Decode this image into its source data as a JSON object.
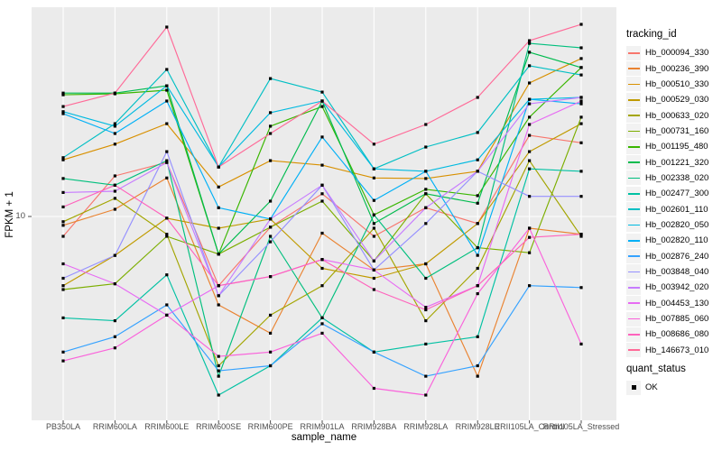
{
  "y_axis": {
    "title": "FPKM + 1",
    "tick_label": "10",
    "tick_value": 10
  },
  "x_axis": {
    "title": "sample_name"
  },
  "legend": {
    "tracking_title": "tracking_id",
    "quant_title": "quant_status",
    "quant_items": [
      {
        "label": "OK",
        "shape": "square",
        "color": "#000000"
      }
    ]
  },
  "chart_data": {
    "type": "line",
    "title": "",
    "xlabel": "sample_name",
    "ylabel": "FPKM + 1",
    "y_scale": "log10",
    "ylim": [
      1,
      120
    ],
    "y_ticks": [
      10
    ],
    "grid": "major-on-white",
    "legend_position": "right",
    "panel_bg": "#EBEBEB",
    "grid_color": "#FFFFFF",
    "marker": {
      "shape": "square",
      "color": "#000000",
      "size": 3.2,
      "legend": "OK"
    },
    "categories": [
      "PB350LA",
      "RRIM600LA",
      "RRIM600LE",
      "RRIM600SE",
      "RRIM600PE",
      "RRIM901LA",
      "RRIM928BA",
      "RRIM928LA",
      "RRIM928LE",
      "RRII105LA_Control",
      "RRII105LA_Stressed"
    ],
    "series": [
      {
        "name": "Hb_000094_330",
        "color": "#F8766D",
        "values": [
          7.9,
          16.2,
          19.0,
          4.4,
          8.8,
          13.1,
          7.9,
          11.1,
          9.2,
          26.2,
          24.0
        ]
      },
      {
        "name": "Hb_000236_390",
        "color": "#EA8331",
        "values": [
          9.0,
          10.9,
          15.8,
          3.5,
          2.5,
          8.2,
          5.3,
          5.7,
          1.5,
          8.7,
          8.1
        ]
      },
      {
        "name": "Hb_000510_330",
        "color": "#D89000",
        "values": [
          19.6,
          23.6,
          30.1,
          14.2,
          19.4,
          18.4,
          15.8,
          15.7,
          17.1,
          48.8,
          65.2
        ]
      },
      {
        "name": "Hb_000529_030",
        "color": "#C09B00",
        "values": [
          4.4,
          6.3,
          9.8,
          8.7,
          9.7,
          5.4,
          4.8,
          5.7,
          9.2,
          21.6,
          30.1
        ]
      },
      {
        "name": "Hb_000633_020",
        "color": "#A3A500",
        "values": [
          9.4,
          12.4,
          8.1,
          1.7,
          3.1,
          4.4,
          8.7,
          2.9,
          5.4,
          19.4,
          7.9
        ]
      },
      {
        "name": "Hb_000731_160",
        "color": "#7CAE00",
        "values": [
          4.2,
          4.5,
          7.9,
          6.4,
          8.8,
          12.0,
          5.9,
          13.1,
          6.9,
          6.5,
          32.5
        ]
      },
      {
        "name": "Hb_001195_480",
        "color": "#39B600",
        "values": [
          42.4,
          42.9,
          44.8,
          6.4,
          29.2,
          36.9,
          10.2,
          13.8,
          12.8,
          32.5,
          58.6
        ]
      },
      {
        "name": "Hb_001221_320",
        "color": "#00BB4E",
        "values": [
          43.3,
          43.3,
          47.2,
          6.4,
          12.0,
          39.4,
          9.2,
          13.1,
          11.7,
          70.3,
          58.6
        ]
      },
      {
        "name": "Hb_002338_020",
        "color": "#00BF7D",
        "values": [
          15.7,
          14.5,
          19.4,
          1.5,
          7.9,
          3.0,
          10.2,
          4.8,
          6.9,
          78.1,
          74.1
        ]
      },
      {
        "name": "Hb_002477_300",
        "color": "#00C1A3",
        "values": [
          3.0,
          2.9,
          5.0,
          1.2,
          1.7,
          3.0,
          2.0,
          2.2,
          2.4,
          17.6,
          17.1
        ]
      },
      {
        "name": "Hb_002601_110",
        "color": "#00BFC4",
        "values": [
          20.1,
          30.1,
          57.3,
          18.0,
          51.4,
          43.8,
          17.6,
          22.8,
          27.1,
          59.9,
          53.7
        ]
      },
      {
        "name": "Hb_002820_050",
        "color": "#00BAE0",
        "values": [
          34.7,
          29.2,
          47.2,
          18.0,
          34.3,
          39.4,
          17.6,
          17.1,
          19.6,
          40.2,
          41.1
        ]
      },
      {
        "name": "Hb_002820_110",
        "color": "#00B0F6",
        "values": [
          33.9,
          26.8,
          39.4,
          11.1,
          9.7,
          25.7,
          12.1,
          17.1,
          6.3,
          40.2,
          38.1
        ]
      },
      {
        "name": "Hb_002876_240",
        "color": "#35A2FF",
        "values": [
          2.0,
          2.4,
          3.5,
          1.6,
          1.7,
          2.8,
          2.0,
          1.5,
          1.7,
          4.4,
          4.3
        ]
      },
      {
        "name": "Hb_003848_040",
        "color": "#9590FF",
        "values": [
          4.8,
          6.3,
          21.6,
          3.9,
          7.4,
          14.5,
          5.3,
          9.2,
          17.1,
          12.7,
          12.7
        ]
      },
      {
        "name": "Hb_003942_020",
        "color": "#C77CFF",
        "values": [
          13.3,
          13.5,
          19.0,
          3.9,
          9.7,
          14.5,
          5.9,
          11.1,
          17.1,
          38.1,
          41.1
        ]
      },
      {
        "name": "Hb_004453_130",
        "color": "#E76BF3",
        "values": [
          5.7,
          4.5,
          3.1,
          4.4,
          4.9,
          6.0,
          5.3,
          3.4,
          4.4,
          29.8,
          39.4
        ]
      },
      {
        "name": "Hb_007885_060",
        "color": "#FA62DB",
        "values": [
          1.8,
          2.1,
          3.1,
          1.9,
          2.0,
          2.5,
          1.3,
          1.2,
          4.0,
          8.7,
          2.2
        ]
      },
      {
        "name": "Hb_008686_080",
        "color": "#FF62BC",
        "values": [
          11.2,
          14.5,
          9.8,
          4.4,
          4.9,
          6.0,
          4.2,
          3.3,
          4.4,
          7.8,
          8.1
        ]
      },
      {
        "name": "Hb_146673_010",
        "color": "#FF6A98",
        "values": [
          36.9,
          43.3,
          94.8,
          18.0,
          26.8,
          39.4,
          23.6,
          29.8,
          41.1,
          80.6,
          97.9
        ]
      }
    ]
  }
}
